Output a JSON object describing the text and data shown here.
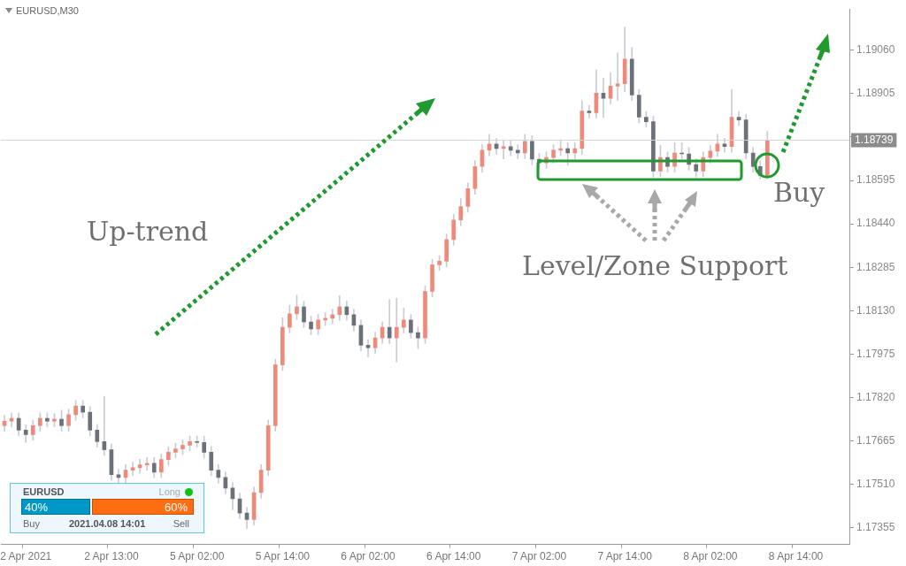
{
  "chart_data": {
    "type": "candlestick",
    "title": "EURUSD,M30",
    "categories": [
      null,
      null,
      null,
      "2 Apr 2021",
      null,
      null,
      null,
      null,
      null,
      null,
      null,
      null,
      null,
      null,
      null,
      "2 Apr 13:00",
      null,
      null,
      null,
      null,
      null,
      null,
      null,
      null,
      null,
      null,
      null,
      "5 Apr 02:00",
      null,
      null,
      null,
      null,
      null,
      null,
      null,
      null,
      null,
      null,
      null,
      "5 Apr 14:00",
      null,
      null,
      null,
      null,
      null,
      null,
      null,
      null,
      null,
      null,
      null,
      "6 Apr 02:00",
      null,
      null,
      null,
      null,
      null,
      null,
      null,
      null,
      null,
      null,
      null,
      "6 Apr 14:00",
      null,
      null,
      null,
      null,
      null,
      null,
      null,
      null,
      null,
      null,
      null,
      "7 Apr 02:00",
      null,
      null,
      null,
      null,
      null,
      null,
      null,
      null,
      null,
      null,
      null,
      "7 Apr 14:00",
      null,
      null,
      null,
      null,
      null,
      null,
      null,
      null,
      null,
      null,
      null,
      "8 Apr 02:00",
      null,
      null,
      null,
      null,
      null,
      null,
      null,
      null,
      null,
      null,
      null,
      "8 Apr 14:00",
      null,
      null,
      null,
      null,
      null,
      null,
      null
    ],
    "ohlc": [
      [
        1.1772,
        1.17756,
        1.177,
        1.17736
      ],
      [
        1.17736,
        1.17766,
        1.17716,
        1.17746
      ],
      [
        1.17746,
        1.17766,
        1.17684,
        1.17704
      ],
      [
        1.17704,
        1.17724,
        1.1766,
        1.17688
      ],
      [
        1.17688,
        1.1774,
        1.17668,
        1.1772
      ],
      [
        1.1772,
        1.17766,
        1.177,
        1.17746
      ],
      [
        1.17746,
        1.17766,
        1.17716,
        1.17736
      ],
      [
        1.17736,
        1.17763,
        1.17716,
        1.17743
      ],
      [
        1.17743,
        1.17775,
        1.177,
        1.1772
      ],
      [
        1.1772,
        1.17779,
        1.177,
        1.17759
      ],
      [
        1.17759,
        1.1781,
        1.17739,
        1.1779
      ],
      [
        1.1779,
        1.1781,
        1.17748,
        1.17768
      ],
      [
        1.17768,
        1.17788,
        1.17684,
        1.17704
      ],
      [
        1.17704,
        1.17724,
        1.17643,
        1.17663
      ],
      [
        1.17663,
        1.17825,
        1.17614,
        1.17634
      ],
      [
        1.17634,
        1.17654,
        1.17525,
        1.17545
      ],
      [
        1.17545,
        1.17565,
        1.17515,
        1.17535
      ],
      [
        1.17535,
        1.17581,
        1.17515,
        1.17561
      ],
      [
        1.17561,
        1.1759,
        1.17541,
        1.1757
      ],
      [
        1.1757,
        1.176,
        1.1755,
        1.1758
      ],
      [
        1.1758,
        1.17606,
        1.1756,
        1.17586
      ],
      [
        1.17586,
        1.17606,
        1.17534,
        1.17554
      ],
      [
        1.17554,
        1.17619,
        1.17534,
        1.17599
      ],
      [
        1.17599,
        1.17645,
        1.17579,
        1.17625
      ],
      [
        1.17625,
        1.17657,
        1.17605,
        1.17637
      ],
      [
        1.17637,
        1.1767,
        1.17617,
        1.1765
      ],
      [
        1.1765,
        1.17683,
        1.1763,
        1.17663
      ],
      [
        1.17663,
        1.17683,
        1.17643,
        1.1766
      ],
      [
        1.1766,
        1.17683,
        1.17605,
        1.17625
      ],
      [
        1.17625,
        1.17645,
        1.17541,
        1.17561
      ],
      [
        1.17561,
        1.17581,
        1.17515,
        1.17535
      ],
      [
        1.17535,
        1.17555,
        1.17477,
        1.17497
      ],
      [
        1.17497,
        1.17517,
        1.1742,
        1.17459
      ],
      [
        1.17459,
        1.17479,
        1.17388,
        1.17408
      ],
      [
        1.17408,
        1.17428,
        1.17353,
        1.17385
      ],
      [
        1.17385,
        1.17501,
        1.17365,
        1.17481
      ],
      [
        1.17481,
        1.17581,
        1.17461,
        1.17561
      ],
      [
        1.17561,
        1.1774,
        1.17541,
        1.1772
      ],
      [
        1.1772,
        1.17957,
        1.177,
        1.17937
      ],
      [
        1.17937,
        1.18105,
        1.17917,
        1.18071
      ],
      [
        1.18071,
        1.1815,
        1.18051,
        1.18119
      ],
      [
        1.18119,
        1.18185,
        1.18099,
        1.18144
      ],
      [
        1.18144,
        1.18164,
        1.1807,
        1.1809
      ],
      [
        1.1809,
        1.1811,
        1.18045,
        1.18065
      ],
      [
        1.18065,
        1.18117,
        1.18045,
        1.18097
      ],
      [
        1.18097,
        1.18123,
        1.18077,
        1.18103
      ],
      [
        1.18103,
        1.18136,
        1.18083,
        1.18116
      ],
      [
        1.18116,
        1.18184,
        1.18096,
        1.18144
      ],
      [
        1.18144,
        1.18164,
        1.18096,
        1.18116
      ],
      [
        1.18116,
        1.18136,
        1.18058,
        1.18078
      ],
      [
        1.18078,
        1.18098,
        1.17987,
        1.18007
      ],
      [
        1.18007,
        1.18027,
        1.17966,
        1.17998
      ],
      [
        1.17998,
        1.18053,
        1.17978,
        1.18033
      ],
      [
        1.18033,
        1.18091,
        1.18013,
        1.18071
      ],
      [
        1.18071,
        1.1817,
        1.18013,
        1.18033
      ],
      [
        1.18033,
        1.18175,
        1.17947,
        1.18071
      ],
      [
        1.18071,
        1.1814,
        1.18051,
        1.18097
      ],
      [
        1.18097,
        1.18117,
        1.18032,
        1.18052
      ],
      [
        1.18052,
        1.18072,
        1.17995,
        1.18033
      ],
      [
        1.18033,
        1.18219,
        1.18013,
        1.18199
      ],
      [
        1.18199,
        1.18314,
        1.18179,
        1.18294
      ],
      [
        1.18294,
        1.18327,
        1.18274,
        1.18307
      ],
      [
        1.18307,
        1.18404,
        1.18287,
        1.18384
      ],
      [
        1.18384,
        1.18474,
        1.18364,
        1.18454
      ],
      [
        1.18454,
        1.1853,
        1.18434,
        1.18502
      ],
      [
        1.18502,
        1.18586,
        1.18482,
        1.18566
      ],
      [
        1.18566,
        1.18665,
        1.18546,
        1.18645
      ],
      [
        1.18645,
        1.18723,
        1.18625,
        1.18703
      ],
      [
        1.18703,
        1.1876,
        1.18683,
        1.18725
      ],
      [
        1.18725,
        1.18745,
        1.18689,
        1.18709
      ],
      [
        1.18709,
        1.18736,
        1.18672,
        1.18716
      ],
      [
        1.18716,
        1.18736,
        1.18683,
        1.18703
      ],
      [
        1.18703,
        1.18723,
        1.18673,
        1.18693
      ],
      [
        1.18693,
        1.1876,
        1.18673,
        1.18735
      ],
      [
        1.18735,
        1.18755,
        1.18651,
        1.18671
      ],
      [
        1.18671,
        1.18691,
        1.18638,
        1.18658
      ],
      [
        1.18658,
        1.18697,
        1.18638,
        1.18677
      ],
      [
        1.18677,
        1.18723,
        1.18657,
        1.18703
      ],
      [
        1.18703,
        1.1874,
        1.18683,
        1.18709
      ],
      [
        1.18709,
        1.18729,
        1.1865,
        1.18693
      ],
      [
        1.18693,
        1.18729,
        1.18673,
        1.18709
      ],
      [
        1.18709,
        1.1888,
        1.18689,
        1.18843
      ],
      [
        1.18843,
        1.18863,
        1.18817,
        1.18837
      ],
      [
        1.18837,
        1.1899,
        1.18817,
        1.18907
      ],
      [
        1.18907,
        1.1896,
        1.1882,
        1.18888
      ],
      [
        1.18888,
        1.1898,
        1.18868,
        1.18932
      ],
      [
        1.18932,
        1.1905,
        1.1888,
        1.1894
      ],
      [
        1.1894,
        1.19143,
        1.18912,
        1.19028
      ],
      [
        1.19028,
        1.1907,
        1.1888,
        1.189
      ],
      [
        1.189,
        1.1892,
        1.18801,
        1.18821
      ],
      [
        1.18821,
        1.18841,
        1.18785,
        1.18805
      ],
      [
        1.18805,
        1.18825,
        1.18607,
        1.18629
      ],
      [
        1.18629,
        1.1872,
        1.18609,
        1.18677
      ],
      [
        1.18677,
        1.18697,
        1.18625,
        1.18645
      ],
      [
        1.18645,
        1.1873,
        1.18625,
        1.18693
      ],
      [
        1.18693,
        1.1873,
        1.18673,
        1.1869
      ],
      [
        1.1869,
        1.18713,
        1.18632,
        1.18652
      ],
      [
        1.18652,
        1.18672,
        1.18607,
        1.18629
      ],
      [
        1.18629,
        1.18697,
        1.18609,
        1.18677
      ],
      [
        1.18677,
        1.1872,
        1.18657,
        1.187
      ],
      [
        1.187,
        1.1876,
        1.1868,
        1.18725
      ],
      [
        1.18725,
        1.18745,
        1.18696,
        1.18716
      ],
      [
        1.18716,
        1.1892,
        1.18696,
        1.18821
      ],
      [
        1.18821,
        1.18841,
        1.18791,
        1.18811
      ],
      [
        1.18811,
        1.18831,
        1.18673,
        1.18693
      ],
      [
        1.18693,
        1.18713,
        1.18625,
        1.18645
      ],
      [
        1.18645,
        1.18665,
        1.186,
        1.18613
      ],
      [
        1.18613,
        1.1877,
        1.186,
        1.18739
      ],
      null,
      null,
      null,
      null,
      null,
      null,
      null,
      null,
      null,
      null,
      null
    ],
    "ylim": [
      1.17296,
      1.19207
    ],
    "yticks": [
      {
        "value": 1.17355,
        "label": "1.17355"
      },
      {
        "value": 1.1751,
        "label": "1.17510"
      },
      {
        "value": 1.17665,
        "label": "1.17665"
      },
      {
        "value": 1.1782,
        "label": "1.17820"
      },
      {
        "value": 1.17975,
        "label": "1.17975"
      },
      {
        "value": 1.1813,
        "label": "1.18130"
      },
      {
        "value": 1.18285,
        "label": "1.18285"
      },
      {
        "value": 1.1844,
        "label": "1.18440"
      },
      {
        "value": 1.18595,
        "label": "1.18595"
      },
      {
        "value": 1.1875,
        "label": null
      },
      {
        "value": 1.18905,
        "label": "1.18905"
      },
      {
        "value": 1.1906,
        "label": "1.19060"
      }
    ],
    "ref_lines": [
      {
        "axis": "y",
        "value": 1.18739,
        "label": "1.18739"
      }
    ],
    "annotations": [
      "Up-trend",
      "Level/Zone Support",
      "Buy",
      "EURUSD",
      "Long",
      "40%",
      "60%",
      "Buy",
      "Sell",
      "2021.04.08 14:01"
    ]
  }
}
